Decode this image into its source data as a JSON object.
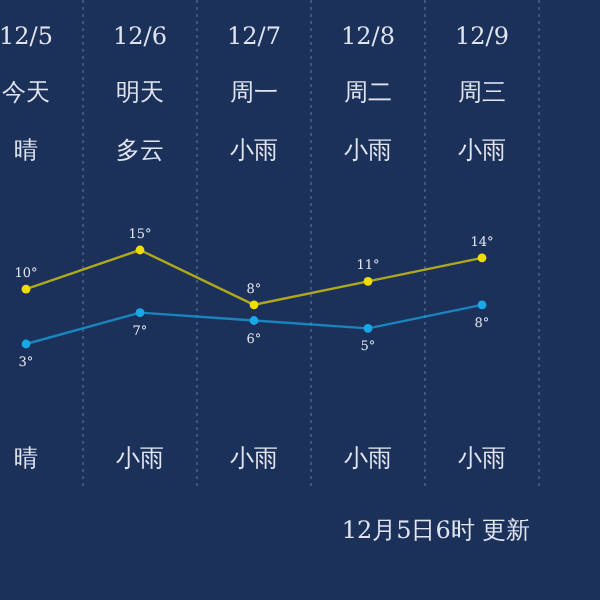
{
  "chart_data": {
    "type": "line",
    "categories": [
      "12/5",
      "12/6",
      "12/7",
      "12/8",
      "12/9"
    ],
    "series": [
      {
        "color": "#f0dc00",
        "values": [
          10,
          15,
          8,
          11,
          14
        ],
        "value_labels": [
          "10°",
          "15°",
          "8°",
          "11°",
          "14°"
        ]
      },
      {
        "color": "#18a8e8",
        "values": [
          3,
          7,
          6,
          5,
          8
        ],
        "value_labels": [
          "3°",
          "7°",
          "6°",
          "5°",
          "8°"
        ]
      }
    ],
    "annotations": [
      "今天",
      "明天",
      "周一",
      "周二",
      "周三",
      "晴",
      "多云",
      "小雨",
      "小雨",
      "小雨",
      "晴",
      "小雨",
      "小雨",
      "小雨",
      "小雨",
      "12月5日6时 更新"
    ],
    "grid": "x",
    "marker": "circle"
  }
}
